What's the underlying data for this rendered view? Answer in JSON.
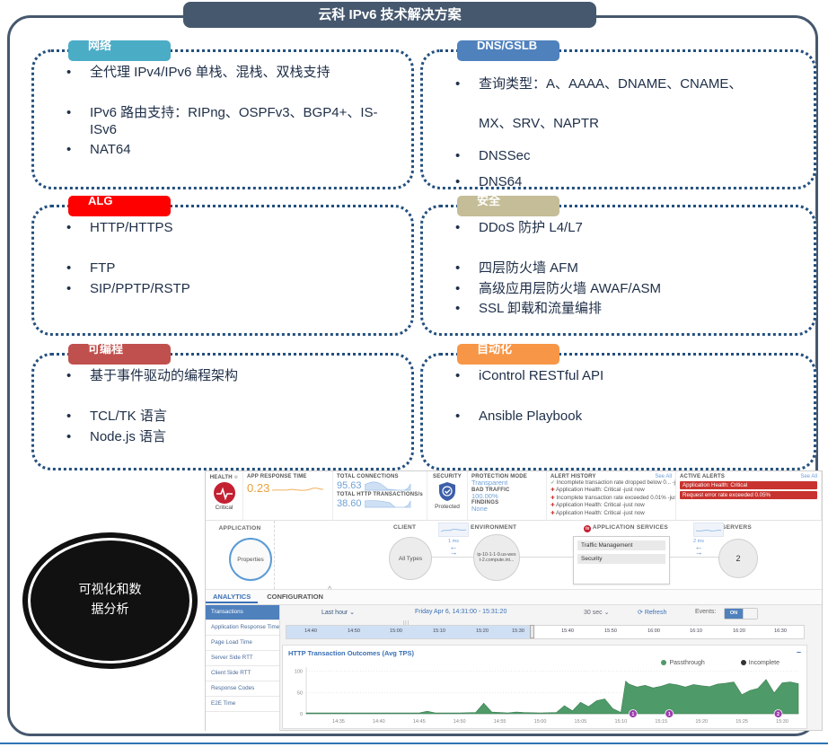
{
  "slide": {
    "title": "云科 IPv6 技术解决方案"
  },
  "boxes": [
    {
      "tab": "网络",
      "color": "#4BACC6",
      "bullets": [
        "全代理 IPv4/IPv6 单栈、混栈、双栈支持",
        "IPv6 路由支持：RIPng、OSPFv3、BGP4+、IS-ISv6",
        "NAT64"
      ]
    },
    {
      "tab": "DNS/GSLB",
      "color": "#4F81BD",
      "bullets": [
        "查询类型：A、AAAA、DNAME、CNAME、MX、SRV、NAPTR",
        "DNSSec",
        "DNS64"
      ]
    },
    {
      "tab": "ALG",
      "color": "#FE0000",
      "bullets": [
        "HTTP/HTTPS",
        "FTP",
        "SIP/PPTP/RSTP"
      ]
    },
    {
      "tab": "安全",
      "color": "#C4BD97",
      "bullets": [
        "DDoS 防护 L4/L7",
        "四层防火墙 AFM",
        "高级应用层防火墙 AWAF/ASM",
        "SSL 卸载和流量编排"
      ]
    },
    {
      "tab": "可编程",
      "color": "#C0504D",
      "bullets": [
        "基于事件驱动的编程架构",
        "TCL/TK 语言",
        "Node.js 语言"
      ]
    },
    {
      "tab": "自动化",
      "color": "#F79646",
      "bullets": [
        "iControl RESTful API",
        "Ansible Playbook"
      ]
    }
  ],
  "visual_circle": {
    "line1": "可视化和数",
    "line2": "据分析"
  },
  "icons": {
    "gear": "⚙",
    "caret_down": "⌄",
    "caret_up": "^",
    "refresh": "⟳",
    "check": "✓",
    "alert": "✚",
    "dot": "●",
    "minus": "–",
    "arrow_left": "←",
    "arrow_right": "→",
    "f5": "f5",
    "grip": "|||"
  },
  "dashboard": {
    "health": {
      "label": "HEALTH",
      "status": "Critical"
    },
    "app_response": {
      "label": "APP RESPONSE TIME",
      "value": "0.23"
    },
    "connections": {
      "label": "TOTAL CONNECTIONS",
      "value": "95.63"
    },
    "transactions": {
      "label": "TOTAL HTTP TRANSACTIONS/s",
      "value": "38.60"
    },
    "security": {
      "label": "SECURITY",
      "status": "Protected"
    },
    "protection": {
      "mode_label": "PROTECTION MODE",
      "mode": "Transparent",
      "bad_traffic_label": "BAD TRAFFIC",
      "bad_traffic": "100.00%",
      "findings_label": "FINDINGS",
      "findings": "None"
    },
    "alert_history": {
      "title": "ALERT HISTORY",
      "see_all": "See All",
      "items": [
        {
          "icon": "check",
          "text": "Incomplete transaction rate dropped below 0... -just now"
        },
        {
          "icon": "alert",
          "text": "Application Health: Critical -just now"
        },
        {
          "icon": "alert",
          "text": "Incomplete transaction rate exceeded 0.01% -just now"
        },
        {
          "icon": "alert",
          "text": "Application Health: Critical -just now"
        },
        {
          "icon": "alert",
          "text": "Application Health: Critical -just now"
        }
      ]
    },
    "active_alerts": {
      "title": "ACTIVE ALERTS",
      "see_all": "See All",
      "items": [
        "Application Health: Critical",
        "Request error rate exceeded 0.05%"
      ]
    },
    "topology": {
      "application": {
        "label": "APPLICATION",
        "node": "Properties"
      },
      "client": {
        "label": "CLIENT",
        "node": "All Types",
        "latency": "1 ms"
      },
      "environment": {
        "label": "ENVIRONMENT",
        "node": "ip-10-1-1-9.us-west-2.compute.int..."
      },
      "services": {
        "label": "APPLICATION SERVICES",
        "items": [
          "Traffic Management",
          "Security"
        ],
        "latency": "2 ms"
      },
      "servers": {
        "label": "SERVERS",
        "node": "2"
      }
    },
    "analytics": {
      "tabs": [
        "ANALYTICS",
        "CONFIGURATION"
      ],
      "sidebar": [
        "Transactions",
        "Application Response Time",
        "Page Load Time",
        "Server Side RTT",
        "Client Side RTT",
        "Response Codes",
        "E2E Time"
      ],
      "controls": {
        "range": "Last hour",
        "period": "Friday Apr 6, 14:31:00 - 15:31:20",
        "interval": "30 sec",
        "refresh": "Refresh",
        "events_label": "Events:",
        "events_state": "ON"
      },
      "timeline_ticks": [
        "14:40",
        "14:50",
        "15:00",
        "15:10",
        "15:20",
        "15:30",
        "15:40",
        "15:50",
        "16:00",
        "16:10",
        "16:20",
        "16:30"
      ]
    }
  },
  "chart_data": {
    "type": "area",
    "title": "HTTP Transaction Outcomes (Avg TPS)",
    "x_start": "14:31",
    "x_end": "15:32",
    "x_domain_minutes": 61,
    "x_ticks": [
      "14:35",
      "14:40",
      "14:45",
      "14:50",
      "14:55",
      "15:00",
      "15:05",
      "15:10",
      "15:15",
      "15:20",
      "15:25",
      "15:30"
    ],
    "x_tick_first_minute": 4,
    "x_tick_step_minutes": 5,
    "y_ticks": [
      0,
      50,
      100
    ],
    "ylim": [
      0,
      110
    ],
    "grid": true,
    "legend_position": "top-right",
    "series": [
      {
        "name": "Passthrough",
        "color": "#4E9A68",
        "points": [
          [
            0,
            2
          ],
          [
            3,
            2
          ],
          [
            6,
            2
          ],
          [
            9,
            2
          ],
          [
            12,
            2
          ],
          [
            14,
            2
          ],
          [
            15,
            6
          ],
          [
            16,
            2
          ],
          [
            19,
            2
          ],
          [
            21,
            3
          ],
          [
            22,
            25
          ],
          [
            23,
            4
          ],
          [
            25,
            2
          ],
          [
            26,
            4
          ],
          [
            27,
            3
          ],
          [
            29,
            2
          ],
          [
            31,
            3
          ],
          [
            32,
            19
          ],
          [
            33,
            7
          ],
          [
            34,
            27
          ],
          [
            35,
            17
          ],
          [
            36,
            31
          ],
          [
            37,
            35
          ],
          [
            38,
            12
          ],
          [
            39,
            3
          ],
          [
            39.6,
            77
          ],
          [
            40,
            70
          ],
          [
            41,
            63
          ],
          [
            42,
            67
          ],
          [
            43,
            61
          ],
          [
            44,
            65
          ],
          [
            45,
            71
          ],
          [
            46,
            68
          ],
          [
            47,
            63
          ],
          [
            48,
            69
          ],
          [
            49,
            66
          ],
          [
            50,
            64
          ],
          [
            51,
            70
          ],
          [
            52,
            72
          ],
          [
            53,
            75
          ],
          [
            54,
            45
          ],
          [
            55,
            55
          ],
          [
            56,
            60
          ],
          [
            57,
            81
          ],
          [
            58,
            49
          ],
          [
            59,
            73
          ],
          [
            60,
            75
          ],
          [
            61,
            71
          ]
        ]
      },
      {
        "name": "Incomplete",
        "color": "#333333",
        "points": []
      }
    ],
    "events": [
      {
        "minute": 40.5,
        "label": "1"
      },
      {
        "minute": 45,
        "label": "1"
      },
      {
        "minute": 58.5,
        "label": "2"
      }
    ]
  }
}
